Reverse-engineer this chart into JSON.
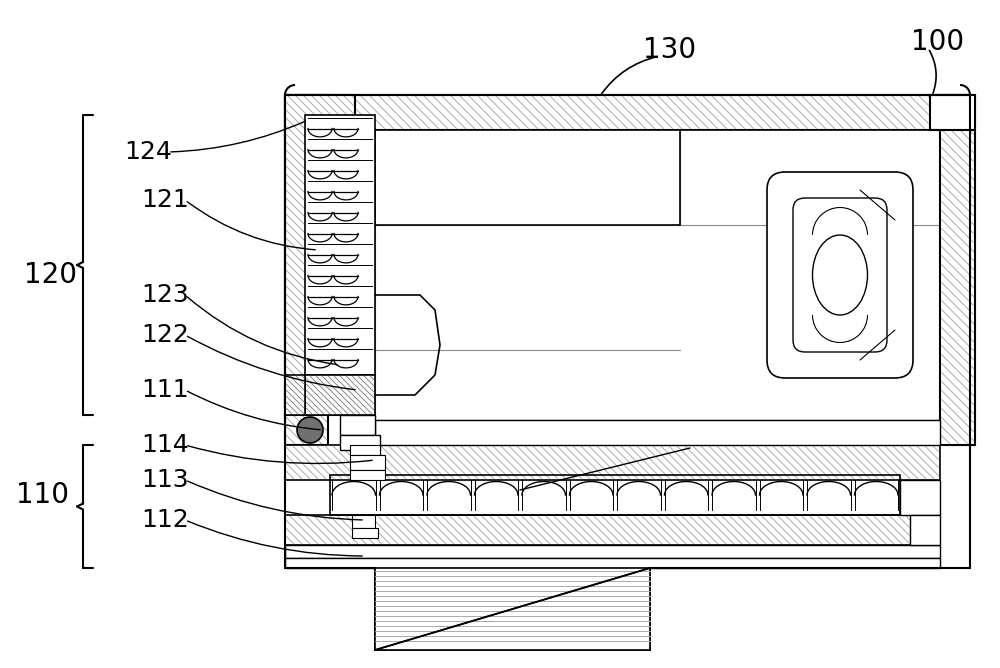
{
  "bg_color": "#ffffff",
  "lc": "#000000",
  "hatch_gray": "#999999",
  "figsize": [
    10.0,
    6.68
  ],
  "dpi": 100,
  "label_fs": 20,
  "anno_fs": 18
}
